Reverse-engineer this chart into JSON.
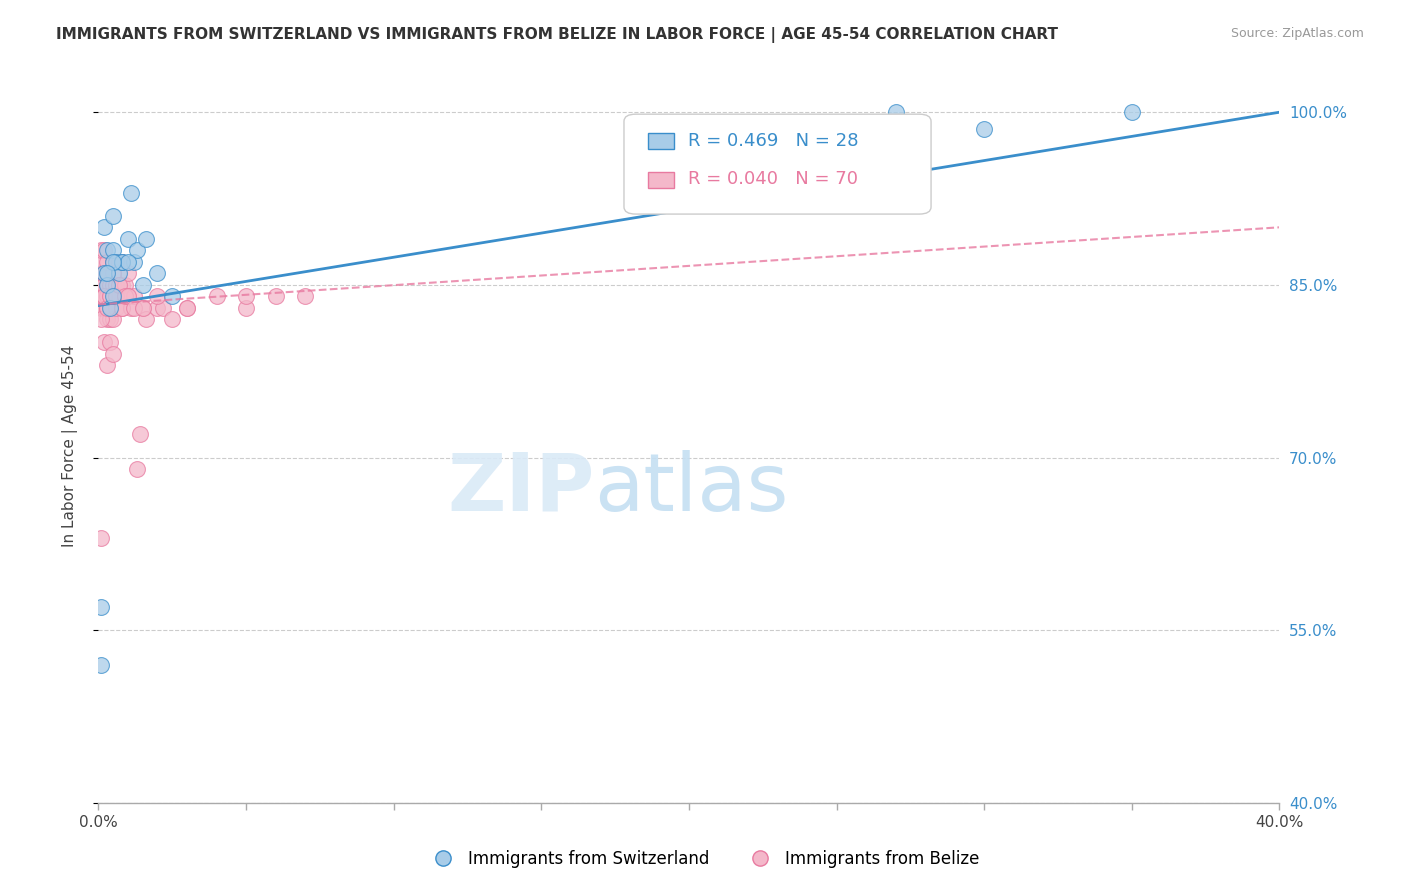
{
  "title": "IMMIGRANTS FROM SWITZERLAND VS IMMIGRANTS FROM BELIZE IN LABOR FORCE | AGE 45-54 CORRELATION CHART",
  "source": "Source: ZipAtlas.com",
  "ylabel": "In Labor Force | Age 45-54",
  "xlim": [
    0.0,
    0.4
  ],
  "ylim": [
    0.4,
    1.02
  ],
  "xticks": [
    0.0,
    0.05,
    0.1,
    0.15,
    0.2,
    0.25,
    0.3,
    0.35,
    0.4
  ],
  "xticklabels_show": [
    "0.0%",
    "40.0%"
  ],
  "yticks": [
    0.4,
    0.55,
    0.7,
    0.85,
    1.0
  ],
  "yticklabels": [
    "40.0%",
    "55.0%",
    "70.0%",
    "85.0%",
    "100.0%"
  ],
  "R_switzerland": 0.469,
  "N_switzerland": 28,
  "R_belize": 0.04,
  "N_belize": 70,
  "color_switzerland": "#a8cce8",
  "color_belize": "#f4b8ca",
  "color_switzerland_line": "#3a8ecb",
  "color_belize_line": "#e87aa0",
  "switzerland_x": [
    0.001,
    0.001,
    0.002,
    0.002,
    0.003,
    0.003,
    0.004,
    0.005,
    0.005,
    0.005,
    0.006,
    0.007,
    0.008,
    0.01,
    0.011,
    0.012,
    0.013,
    0.015,
    0.016,
    0.02,
    0.025,
    0.27,
    0.3,
    0.35,
    0.008,
    0.01,
    0.005,
    0.003
  ],
  "switzerland_y": [
    0.52,
    0.57,
    0.86,
    0.9,
    0.85,
    0.88,
    0.83,
    0.84,
    0.88,
    0.91,
    0.87,
    0.86,
    0.87,
    0.89,
    0.93,
    0.87,
    0.88,
    0.85,
    0.89,
    0.86,
    0.84,
    1.0,
    0.985,
    1.0,
    0.87,
    0.87,
    0.87,
    0.86
  ],
  "belize_x": [
    0.001,
    0.001,
    0.001,
    0.001,
    0.001,
    0.001,
    0.001,
    0.002,
    0.002,
    0.002,
    0.002,
    0.002,
    0.002,
    0.003,
    0.003,
    0.003,
    0.003,
    0.003,
    0.003,
    0.003,
    0.004,
    0.004,
    0.004,
    0.004,
    0.004,
    0.005,
    0.005,
    0.005,
    0.005,
    0.005,
    0.006,
    0.006,
    0.006,
    0.007,
    0.007,
    0.008,
    0.008,
    0.008,
    0.009,
    0.01,
    0.01,
    0.011,
    0.012,
    0.013,
    0.014,
    0.015,
    0.016,
    0.02,
    0.022,
    0.025,
    0.03,
    0.04,
    0.05,
    0.06,
    0.07,
    0.001,
    0.002,
    0.003,
    0.004,
    0.005,
    0.006,
    0.007,
    0.008,
    0.009,
    0.01,
    0.012,
    0.015,
    0.02,
    0.03,
    0.05
  ],
  "belize_y": [
    0.63,
    0.83,
    0.84,
    0.85,
    0.86,
    0.87,
    0.88,
    0.8,
    0.83,
    0.84,
    0.85,
    0.86,
    0.88,
    0.78,
    0.82,
    0.83,
    0.84,
    0.85,
    0.86,
    0.87,
    0.8,
    0.82,
    0.83,
    0.84,
    0.85,
    0.79,
    0.82,
    0.84,
    0.85,
    0.87,
    0.83,
    0.85,
    0.87,
    0.84,
    0.87,
    0.83,
    0.85,
    0.87,
    0.85,
    0.84,
    0.86,
    0.83,
    0.84,
    0.69,
    0.72,
    0.83,
    0.82,
    0.83,
    0.83,
    0.82,
    0.83,
    0.84,
    0.83,
    0.84,
    0.84,
    0.82,
    0.84,
    0.83,
    0.84,
    0.86,
    0.84,
    0.85,
    0.83,
    0.84,
    0.84,
    0.83,
    0.83,
    0.84,
    0.83,
    0.84
  ],
  "sw_trend_x0": 0.0,
  "sw_trend_y0": 0.832,
  "sw_trend_x1": 0.4,
  "sw_trend_y1": 1.0,
  "bz_trend_x0": 0.0,
  "bz_trend_y0": 0.833,
  "bz_trend_x1": 0.4,
  "bz_trend_y1": 0.9
}
